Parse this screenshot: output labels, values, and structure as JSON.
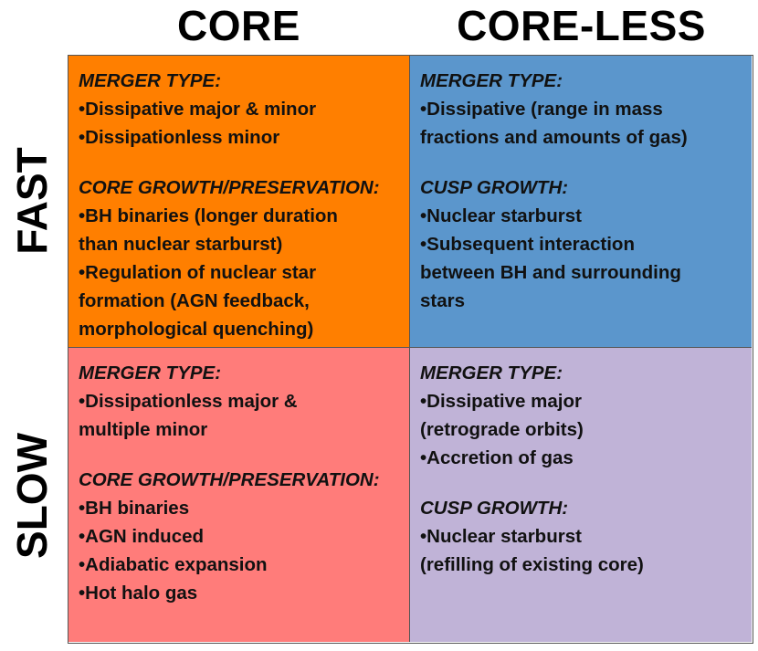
{
  "columns": {
    "core": "CORE",
    "coreless": "CORE-LESS"
  },
  "rows": {
    "fast": "FAST",
    "slow": "SLOW"
  },
  "colors": {
    "fast_core": "#ff7f00",
    "fast_coreless": "#5b96cc",
    "slow_core": "#ff7c7a",
    "slow_coreless": "#c0b3d7"
  },
  "cells": {
    "fast_core": {
      "merger_label": "MERGER TYPE:",
      "merger_lines": [
        "•Dissipative major & minor",
        "•Dissipationless minor"
      ],
      "growth_label": "CORE GROWTH/PRESERVATION:",
      "growth_lines": [
        "•BH binaries (longer duration",
        "than nuclear starburst)",
        "•Regulation of nuclear star",
        "formation (AGN feedback,",
        "morphological quenching)"
      ]
    },
    "fast_coreless": {
      "merger_label": "MERGER TYPE:",
      "merger_lines": [
        "•Dissipative (range in mass",
        "fractions and amounts of gas)"
      ],
      "growth_label": "CUSP GROWTH:",
      "growth_lines": [
        "•Nuclear starburst",
        "•Subsequent interaction",
        "between BH and surrounding",
        "stars"
      ]
    },
    "slow_core": {
      "merger_label": "MERGER TYPE:",
      "merger_lines": [
        "•Dissipationless major &",
        "multiple minor"
      ],
      "growth_label": "CORE GROWTH/PRESERVATION:",
      "growth_lines": [
        "•BH binaries",
        "•AGN induced",
        "•Adiabatic expansion",
        "•Hot halo gas"
      ]
    },
    "slow_coreless": {
      "merger_label": "MERGER TYPE:",
      "merger_lines": [
        "•Dissipative major",
        "(retrograde orbits)",
        "•Accretion of gas"
      ],
      "growth_label": "CUSP GROWTH:",
      "growth_lines": [
        "•Nuclear starburst",
        "(refilling of existing core)"
      ]
    }
  }
}
